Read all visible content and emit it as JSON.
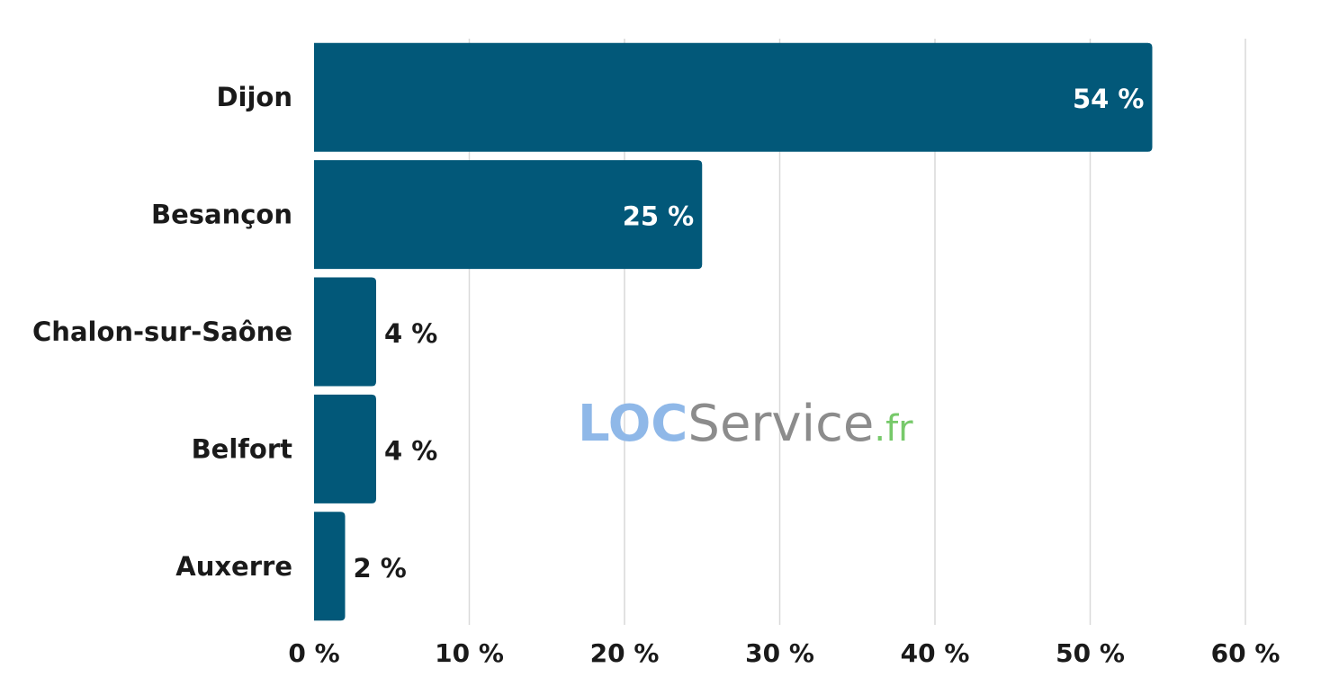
{
  "chart_data": {
    "type": "bar",
    "orientation": "horizontal",
    "categories": [
      "Dijon",
      "Besançon",
      "Chalon-sur-Saône",
      "Belfort",
      "Auxerre"
    ],
    "values": [
      54,
      25,
      4,
      4,
      2
    ],
    "value_labels": [
      "54 %",
      "25 %",
      "4 %",
      "4 %",
      "2 %"
    ],
    "x_ticks": [
      0,
      10,
      20,
      30,
      40,
      50,
      60
    ],
    "x_tick_labels": [
      "0 %",
      "10 %",
      "20 %",
      "30 %",
      "40 %",
      "50 %",
      "60 %"
    ],
    "xlim": [
      0,
      60
    ],
    "grid": "vertical",
    "title": "",
    "xlabel": "",
    "ylabel": ""
  },
  "watermark": {
    "part1": "LOC",
    "part2": "Service",
    "part3": ".fr"
  },
  "colors": {
    "bar": "#025879",
    "grid": "#d9d9d9",
    "label_inside": "#ffffff",
    "label_outside": "#1a1a1a",
    "watermark_loc": "#8fb8e8",
    "watermark_service": "#8c8c8c",
    "watermark_fr": "#77c96a"
  }
}
